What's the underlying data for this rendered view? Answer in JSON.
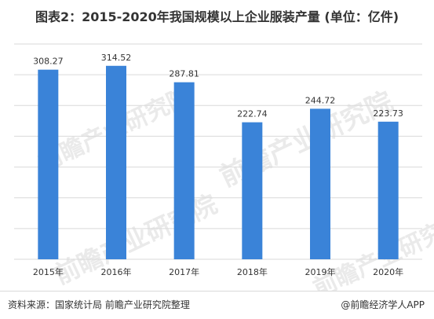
{
  "title": "图表2：2015-2020年我国规模以上企业服装产量 (单位：亿件)",
  "source": "资料来源：国家统计局 前瞻产业研究院整理",
  "brand": "@前瞻经济学人APP",
  "watermark": "前瞻产业研究院",
  "colors": {
    "bar": "#3a83d8",
    "grid": "#d9d9d9",
    "text": "#333333"
  },
  "chart_data": {
    "type": "bar",
    "categories": [
      "2015年",
      "2016年",
      "2017年",
      "2018年",
      "2019年",
      "2020年"
    ],
    "values": [
      308.27,
      314.52,
      287.81,
      222.74,
      244.72,
      223.73
    ],
    "data_labels": [
      "308.27",
      "314.52",
      "287.81",
      "222.74",
      "244.72",
      "223.73"
    ],
    "ylim": [
      0,
      350
    ],
    "grid": true
  }
}
